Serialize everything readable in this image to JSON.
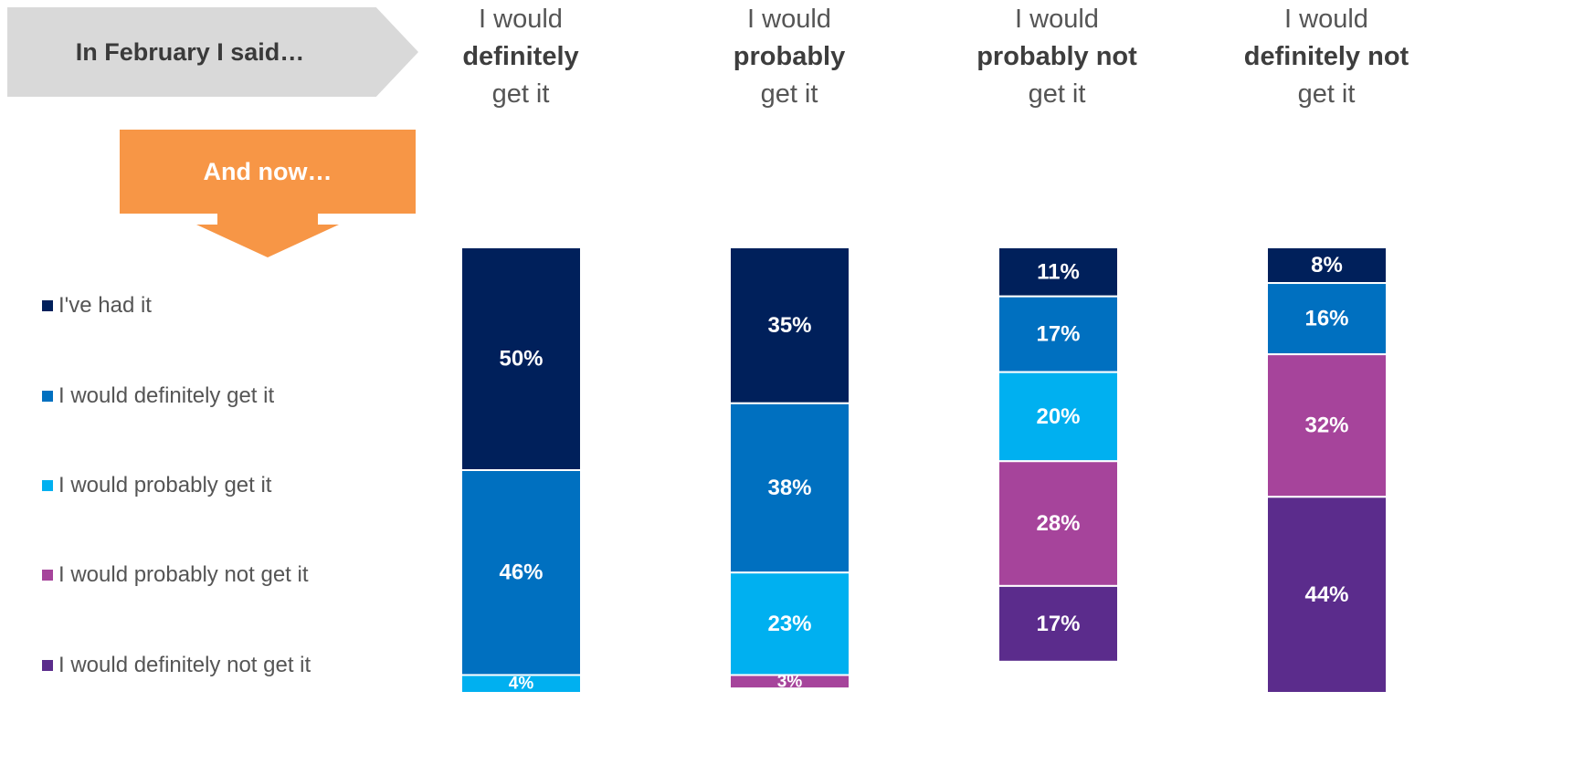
{
  "header": {
    "feb_label": "In February I said…",
    "now_label": "And now…"
  },
  "columns": [
    {
      "line1": "I would",
      "bold": "definitely",
      "line3": "get it"
    },
    {
      "line1": "I would",
      "bold": "probably",
      "line3": "get it"
    },
    {
      "line1": "I would",
      "bold": "probably not",
      "line3": "get it"
    },
    {
      "line1": "I would",
      "bold": "definitely not",
      "line3": "get it"
    }
  ],
  "colors": {
    "had_it": "#00205b",
    "definitely": "#0070c0",
    "probably": "#00b0f0",
    "probably_not": "#a6449b",
    "definitely_not": "#5b2c8c",
    "feb_arrow": "#d9d9d9",
    "now_arrow": "#f79646"
  },
  "chart_data": {
    "type": "bar",
    "stacked": true,
    "categories": [
      "definitely",
      "probably",
      "probably not",
      "definitely not"
    ],
    "series": [
      {
        "name": "I've had it",
        "values": [
          50,
          35,
          11,
          8
        ]
      },
      {
        "name": "I would definitely get it",
        "values": [
          46,
          38,
          17,
          16
        ]
      },
      {
        "name": "I would probably get it",
        "values": [
          4,
          23,
          20,
          0
        ]
      },
      {
        "name": "I would probably not get it",
        "values": [
          0,
          3,
          28,
          32
        ]
      },
      {
        "name": "I would definitely not get it",
        "values": [
          0,
          0,
          17,
          44
        ]
      }
    ],
    "labels": [
      [
        "50%",
        "35%",
        "11%",
        "8%"
      ],
      [
        "46%",
        "38%",
        "17%",
        "16%"
      ],
      [
        "4%",
        "23%",
        "20%",
        ""
      ],
      [
        "",
        "3%",
        "28%",
        "32%"
      ],
      [
        "",
        "",
        "17%",
        "44%"
      ]
    ],
    "legend_position": "left",
    "grid": false
  }
}
